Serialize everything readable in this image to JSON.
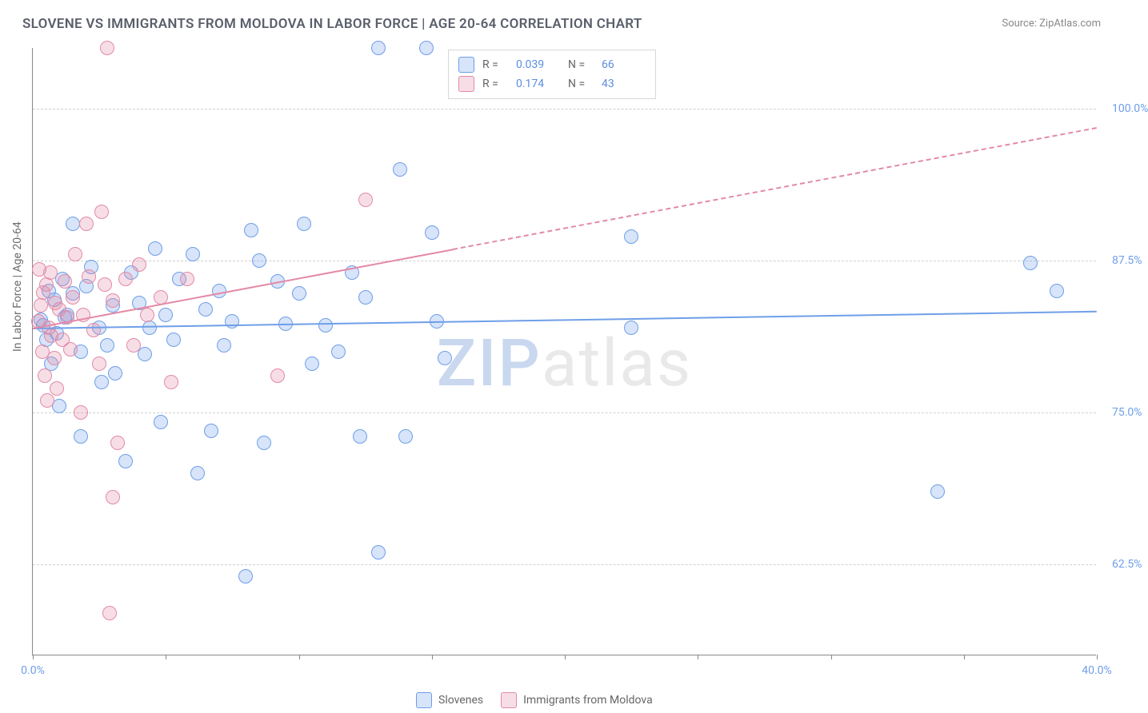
{
  "title": "SLOVENE VS IMMIGRANTS FROM MOLDOVA IN LABOR FORCE | AGE 20-64 CORRELATION CHART",
  "source_label": "Source: ",
  "source_name": "ZipAtlas.com",
  "yaxis_title": "In Labor Force | Age 20-64",
  "watermark_z": "ZIP",
  "watermark_rest": "atlas",
  "chart": {
    "type": "scatter",
    "background_color": "#ffffff",
    "grid_color": "#d0d0d0",
    "axis_color": "#888888",
    "tick_label_color": "#6f9fe8",
    "xlim": [
      0,
      40
    ],
    "ylim": [
      55,
      105
    ],
    "xticks": [
      0,
      5,
      10,
      15,
      20,
      25,
      30,
      35,
      40
    ],
    "xtick_labels": {
      "0": "0.0%",
      "40": "40.0%"
    },
    "yticks": [
      62.5,
      75.0,
      87.5,
      100.0
    ],
    "ytick_labels": [
      "62.5%",
      "75.0%",
      "87.5%",
      "100.0%"
    ],
    "marker_radius": 9,
    "marker_stroke_width": 1.5,
    "marker_fill_opacity": 0.25,
    "series": [
      {
        "name": "Slovenes",
        "color": "#6f9fe8",
        "fill": "rgba(111,159,232,0.28)",
        "R": "0.039",
        "N": "66",
        "regression": {
          "x0": 0,
          "y0": 82.0,
          "x1": 40,
          "y1": 83.4,
          "dash": false,
          "width": 2.5
        },
        "points": [
          [
            0.3,
            82.6
          ],
          [
            0.4,
            82.2
          ],
          [
            0.5,
            81.0
          ],
          [
            0.6,
            85.0
          ],
          [
            0.7,
            79.0
          ],
          [
            0.8,
            84.3
          ],
          [
            1.0,
            75.5
          ],
          [
            1.1,
            86.0
          ],
          [
            1.3,
            83.0
          ],
          [
            1.5,
            84.8
          ],
          [
            1.5,
            90.5
          ],
          [
            1.8,
            80.0
          ],
          [
            1.8,
            73.0
          ],
          [
            2.0,
            85.4
          ],
          [
            2.2,
            87.0
          ],
          [
            2.5,
            82.0
          ],
          [
            2.6,
            77.5
          ],
          [
            2.8,
            80.5
          ],
          [
            3.0,
            83.8
          ],
          [
            3.1,
            78.2
          ],
          [
            3.5,
            71.0
          ],
          [
            3.7,
            86.5
          ],
          [
            4.0,
            84.0
          ],
          [
            4.2,
            79.8
          ],
          [
            4.6,
            88.5
          ],
          [
            4.8,
            74.2
          ],
          [
            5.0,
            83.0
          ],
          [
            5.3,
            81.0
          ],
          [
            5.5,
            86.0
          ],
          [
            6.0,
            88.0
          ],
          [
            6.2,
            70.0
          ],
          [
            6.5,
            83.5
          ],
          [
            6.7,
            73.5
          ],
          [
            7.0,
            85.0
          ],
          [
            7.2,
            80.5
          ],
          [
            7.5,
            82.5
          ],
          [
            8.0,
            61.5
          ],
          [
            8.2,
            90.0
          ],
          [
            8.5,
            87.5
          ],
          [
            8.7,
            72.5
          ],
          [
            9.2,
            85.8
          ],
          [
            9.5,
            82.3
          ],
          [
            10.0,
            84.8
          ],
          [
            10.2,
            90.5
          ],
          [
            10.5,
            79.0
          ],
          [
            11.0,
            82.2
          ],
          [
            11.5,
            80.0
          ],
          [
            12.3,
            73.0
          ],
          [
            12.5,
            84.5
          ],
          [
            13.0,
            63.5
          ],
          [
            13.0,
            105.0
          ],
          [
            13.8,
            95.0
          ],
          [
            14.0,
            73.0
          ],
          [
            14.8,
            105.0
          ],
          [
            15.0,
            89.8
          ],
          [
            15.2,
            82.5
          ],
          [
            15.5,
            79.5
          ],
          [
            22.5,
            89.5
          ],
          [
            22.5,
            82.0
          ],
          [
            34.0,
            68.5
          ],
          [
            37.5,
            87.3
          ],
          [
            38.5,
            85.0
          ],
          [
            12.0,
            86.5
          ],
          [
            4.4,
            82.0
          ],
          [
            1.2,
            82.8
          ],
          [
            0.9,
            81.5
          ]
        ]
      },
      {
        "name": "Immigrants from Moldova",
        "color": "#e38aa6",
        "fill": "rgba(227,138,166,0.28)",
        "R": "0.174",
        "N": "43",
        "regression": {
          "x0": 0,
          "y0": 82.0,
          "x1": 15.8,
          "y1": 88.5,
          "extrap_x1": 40,
          "extrap_y1": 98.5,
          "dash": true,
          "width": 2.5
        },
        "points": [
          [
            0.2,
            82.5
          ],
          [
            0.3,
            83.8
          ],
          [
            0.35,
            80.0
          ],
          [
            0.4,
            84.9
          ],
          [
            0.45,
            78.0
          ],
          [
            0.5,
            85.5
          ],
          [
            0.55,
            76.0
          ],
          [
            0.6,
            82.0
          ],
          [
            0.65,
            86.5
          ],
          [
            0.7,
            81.3
          ],
          [
            0.8,
            79.5
          ],
          [
            0.85,
            84.0
          ],
          [
            0.9,
            77.0
          ],
          [
            1.0,
            83.5
          ],
          [
            1.1,
            81.0
          ],
          [
            1.2,
            85.8
          ],
          [
            1.3,
            82.8
          ],
          [
            1.4,
            80.2
          ],
          [
            1.5,
            84.5
          ],
          [
            1.6,
            88.0
          ],
          [
            1.8,
            75.0
          ],
          [
            1.9,
            83.0
          ],
          [
            2.0,
            90.5
          ],
          [
            2.1,
            86.2
          ],
          [
            2.3,
            81.8
          ],
          [
            2.5,
            79.0
          ],
          [
            2.6,
            91.5
          ],
          [
            2.7,
            85.5
          ],
          [
            2.8,
            105.0
          ],
          [
            3.0,
            84.2
          ],
          [
            3.2,
            72.5
          ],
          [
            3.5,
            86.0
          ],
          [
            3.8,
            80.5
          ],
          [
            4.0,
            87.2
          ],
          [
            4.3,
            83.0
          ],
          [
            4.8,
            84.5
          ],
          [
            5.2,
            77.5
          ],
          [
            5.8,
            86.0
          ],
          [
            3.0,
            68.0
          ],
          [
            2.9,
            58.5
          ],
          [
            9.2,
            78.0
          ],
          [
            12.5,
            92.5
          ],
          [
            0.25,
            86.8
          ]
        ]
      }
    ]
  },
  "legend_top": {
    "r_label": "R =",
    "n_label": "N ="
  },
  "legend_bottom": {
    "items": [
      "Slovenes",
      "Immigrants from Moldova"
    ]
  }
}
